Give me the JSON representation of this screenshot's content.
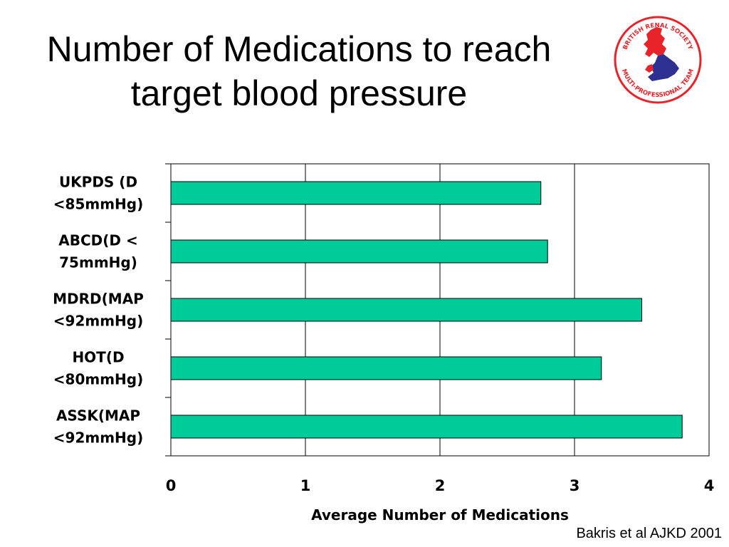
{
  "slide": {
    "title_line1": "Number of Medications to reach",
    "title_line2": "target blood pressure",
    "citation": "Bakris et al AJKD 2001"
  },
  "logo": {
    "top_text": "BRITISH RENAL SOCIETY",
    "bottom_text": "MULTI-PROFESSIONAL TEAM",
    "colors": {
      "ring": "#e8242a",
      "north": "#e8242a",
      "south": "#2e3192"
    }
  },
  "chart_data": {
    "type": "bar",
    "orientation": "horizontal",
    "categories": [
      [
        "UKPDS (D",
        "<85mmHg)"
      ],
      [
        "ABCD(D <",
        "75mmHg)"
      ],
      [
        "MDRD(MAP",
        "<92mmHg)"
      ],
      [
        "HOT(D",
        "<80mmHg)"
      ],
      [
        "ASSK(MAP",
        "<92mmHg)"
      ]
    ],
    "values": [
      2.75,
      2.8,
      3.5,
      3.2,
      3.8
    ],
    "xlim": [
      0,
      4
    ],
    "xticks": [
      "0",
      "1",
      "2",
      "3",
      "4"
    ],
    "xlabel": "Average Number of Medications",
    "ylabel": "",
    "grid": "vertical",
    "bar_color": "#00cc99",
    "bar_edge_color": "#000000"
  }
}
